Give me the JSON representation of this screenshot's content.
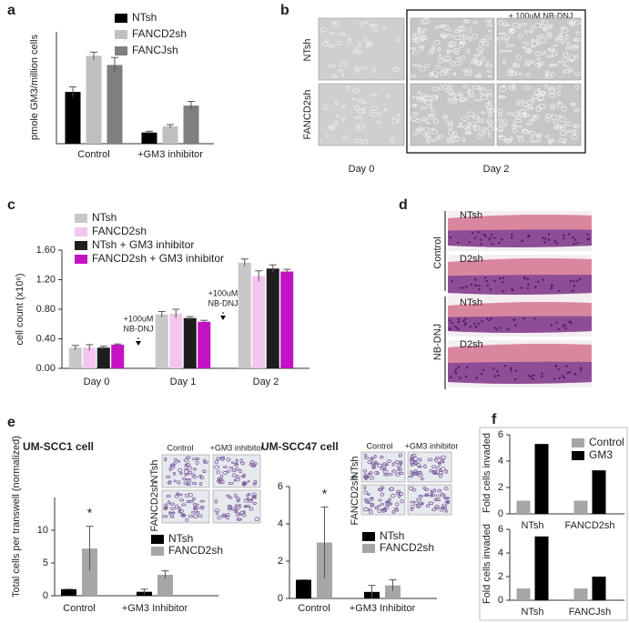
{
  "panel_labels": [
    "a",
    "b",
    "c",
    "d",
    "e",
    "f"
  ],
  "chart_data": [
    {
      "type": "bar",
      "ylabel": "pmole GM3/million cells",
      "categories": [
        "Control",
        "+GM3 inhibitor"
      ],
      "series": [
        {
          "name": "NTsh",
          "color": "#000000",
          "values": [
            125,
            27
          ],
          "errors": [
            12,
            3
          ]
        },
        {
          "name": "FANCD2sh",
          "color": "#c0c0c0",
          "values": [
            212,
            42
          ],
          "errors": [
            9,
            4
          ]
        },
        {
          "name": "FANCJsh",
          "color": "#7f7f7f",
          "values": [
            190,
            92
          ],
          "errors": [
            18,
            10
          ]
        }
      ],
      "ylim": [
        0,
        270
      ]
    },
    {
      "type": "bar",
      "ylabel": "cell count (x10⁶)",
      "categories": [
        "Day 0",
        "Day 1",
        "Day 2"
      ],
      "series": [
        {
          "name": "NTsh",
          "color": "#c8c8c8",
          "values": [
            0.28,
            0.73,
            1.43
          ],
          "errors": [
            0.03,
            0.04,
            0.05
          ]
        },
        {
          "name": "FANCD2sh",
          "color": "#f2c6ee",
          "values": [
            0.28,
            0.74,
            1.25
          ],
          "errors": [
            0.04,
            0.06,
            0.07
          ]
        },
        {
          "name": "NTsh + GM3 inhibitor",
          "color": "#1e1e1e",
          "values": [
            0.28,
            0.68,
            1.35
          ],
          "errors": [
            0.02,
            0.02,
            0.05
          ]
        },
        {
          "name": "FANCD2sh + GM3 inhibitor",
          "color": "#c412c4",
          "values": [
            0.32,
            0.63,
            1.31
          ],
          "errors": [
            0.01,
            0.02,
            0.03
          ]
        }
      ],
      "ylim": [
        0,
        1.6
      ],
      "yticks": [
        {
          "value": 0,
          "label": "0.00"
        },
        {
          "value": 0.4,
          "label": "0.40"
        },
        {
          "value": 0.8,
          "label": "0.80"
        },
        {
          "value": 1.2,
          "label": "1.20"
        },
        {
          "value": 1.6,
          "label": "1.60"
        }
      ],
      "annotations": [
        [
          "+100uM",
          "NB-DNJ"
        ],
        [
          "+100uM",
          "NB-DNJ"
        ]
      ]
    },
    {
      "type": "bar",
      "title": "UM-SCC1 cell",
      "categories": [
        "Control",
        "+GM3 Inhibitor"
      ],
      "series": [
        {
          "name": "NTsh",
          "color": "#000000",
          "values": [
            1,
            0.6
          ],
          "errors": [
            0,
            0.4
          ]
        },
        {
          "name": "FANCD2sh",
          "color": "#a6a6a6",
          "values": [
            7.2,
            3.2
          ],
          "errors": [
            3.4,
            0.6
          ]
        }
      ],
      "ylim": [
        0,
        15
      ],
      "yticks": [
        0,
        5,
        10
      ],
      "annotation": "*"
    },
    {
      "type": "bar",
      "title": "UM-SCC47 cell",
      "categories": [
        "Control",
        "+GM3 Inhibitor"
      ],
      "series": [
        {
          "name": "NTsh",
          "color": "#000000",
          "values": [
            1,
            0.35
          ],
          "errors": [
            0,
            0.35
          ]
        },
        {
          "name": "FANCD2sh",
          "color": "#a6a6a6",
          "values": [
            3,
            0.7
          ],
          "errors": [
            1.9,
            0.3
          ]
        }
      ],
      "ylim": [
        0,
        6
      ],
      "yticks": [
        0,
        2,
        4,
        6
      ],
      "annotation": "*"
    },
    {
      "type": "bar",
      "ylabel": "Fold cells invaded",
      "categories": [
        "NTsh",
        "FANCD2sh"
      ],
      "series": [
        {
          "name": "Control",
          "color": "#a6a6a6",
          "values": [
            1,
            1
          ]
        },
        {
          "name": "GM3",
          "color": "#000000",
          "values": [
            5.3,
            3.3
          ]
        }
      ],
      "ylim": [
        0,
        6
      ],
      "yticks": [
        0,
        2,
        4,
        6
      ]
    },
    {
      "type": "bar",
      "ylabel": "Fold cells invaded",
      "categories": [
        "NTsh",
        "FANCJsh"
      ],
      "series": [
        {
          "color": "#a6a6a6",
          "values": [
            1,
            1
          ]
        },
        {
          "color": "#000000",
          "values": [
            5.4,
            2
          ]
        }
      ],
      "ylim": [
        0,
        6
      ],
      "yticks": [
        0,
        2,
        4,
        6
      ]
    }
  ],
  "panel_b": {
    "rows": [
      "NTsh",
      "FANCD2sh"
    ],
    "columns": [
      "Day 0",
      "Day 2"
    ],
    "treatment": "+ 100uM NB-DNJ"
  },
  "panel_d": {
    "rows": [
      "NTsh",
      "D2sh",
      "NTsh",
      "D2sh"
    ],
    "groups": [
      "Control",
      "NB-DNJ"
    ]
  },
  "panel_e": {
    "ylabel": "Total cells per transwell (normalized)",
    "insets": [
      {
        "columns": [
          "Control",
          "+GM3 inhibitor"
        ],
        "rows": [
          "FANCD2sh",
          "NTsh"
        ]
      },
      {
        "columns": [
          "Control",
          "+GM3 inhibitor"
        ],
        "rows": [
          "FANCD2sh",
          "NTsh"
        ]
      }
    ]
  }
}
